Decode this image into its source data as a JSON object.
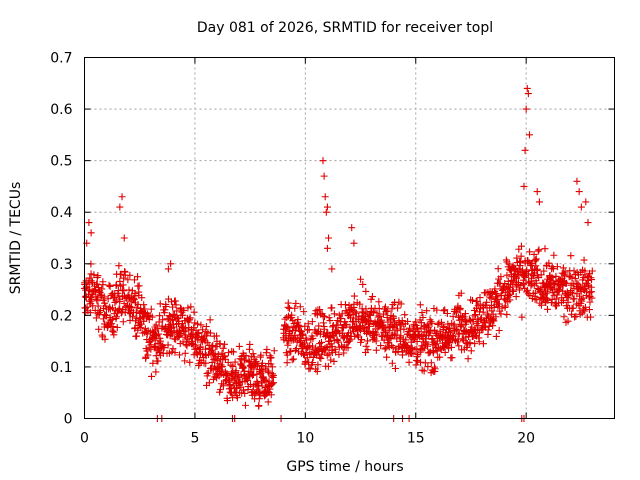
{
  "chart_data": {
    "type": "scatter",
    "title": "Day 081 of 2026, SRMTID for receiver topl",
    "xlabel": "GPS time / hours",
    "ylabel": "SRMTID / TECUs",
    "xlim": [
      0,
      24
    ],
    "ylim": [
      0,
      0.7
    ],
    "xticks": [
      0,
      5,
      10,
      15,
      20
    ],
    "xtick_labels": [
      "0",
      "5",
      "10",
      "15",
      "20"
    ],
    "yticks": [
      0,
      0.1,
      0.2,
      0.3,
      0.4,
      0.5,
      0.6,
      0.7
    ],
    "ytick_labels": [
      "0",
      "0.1",
      "0.2",
      "0.3",
      "0.4",
      "0.5",
      "0.6",
      "0.7"
    ],
    "grid": true,
    "marker": "+",
    "marker_color": "#e00000",
    "series": [
      {
        "name": "SRMTID",
        "profile_x": [
          0,
          0.5,
          1,
          1.5,
          2,
          2.5,
          3,
          3.5,
          4,
          4.5,
          5,
          5.5,
          6,
          6.5,
          7,
          7.5,
          8,
          8.5,
          9,
          9.5,
          10,
          10.5,
          11,
          11.5,
          12,
          12.5,
          13,
          13.5,
          14,
          14.5,
          15,
          15.5,
          16,
          16.5,
          17,
          17.5,
          18,
          18.5,
          19,
          19.5,
          20,
          20.5,
          21,
          21.5,
          22,
          22.5,
          23
        ],
        "profile_y": [
          0.24,
          0.24,
          0.2,
          0.22,
          0.24,
          0.2,
          0.15,
          0.16,
          0.19,
          0.17,
          0.15,
          0.13,
          0.11,
          0.07,
          0.08,
          0.09,
          0.08,
          0.08,
          0.17,
          0.16,
          0.14,
          0.15,
          0.15,
          0.17,
          0.18,
          0.18,
          0.18,
          0.18,
          0.17,
          0.16,
          0.16,
          0.15,
          0.15,
          0.16,
          0.18,
          0.18,
          0.2,
          0.21,
          0.25,
          0.27,
          0.27,
          0.27,
          0.26,
          0.25,
          0.25,
          0.25,
          0.25
        ],
        "spread": 0.05,
        "x": [
          0.1,
          0.2,
          0.3,
          1.6,
          1.7,
          1.8,
          3.8,
          3.9,
          10.8,
          10.85,
          10.9,
          10.95,
          11.0,
          11.05,
          12.1,
          12.2,
          19.9,
          19.95,
          20.0,
          20.05,
          20.1,
          20.15,
          20.5,
          20.6,
          22.3,
          22.4,
          22.5,
          22.7,
          22.8,
          11.0,
          11.2,
          12.5,
          12.6
        ],
        "y": [
          0.34,
          0.38,
          0.36,
          0.41,
          0.43,
          0.35,
          0.29,
          0.3,
          0.5,
          0.47,
          0.43,
          0.4,
          0.41,
          0.35,
          0.37,
          0.34,
          0.45,
          0.52,
          0.6,
          0.64,
          0.63,
          0.55,
          0.44,
          0.42,
          0.46,
          0.44,
          0.41,
          0.42,
          0.38,
          0.33,
          0.29,
          0.27,
          0.26
        ],
        "zero_x": [
          3.3,
          3.5,
          6.7,
          6.8,
          8.9,
          14.0,
          14.4,
          14.7,
          19.8,
          19.9
        ]
      }
    ]
  }
}
